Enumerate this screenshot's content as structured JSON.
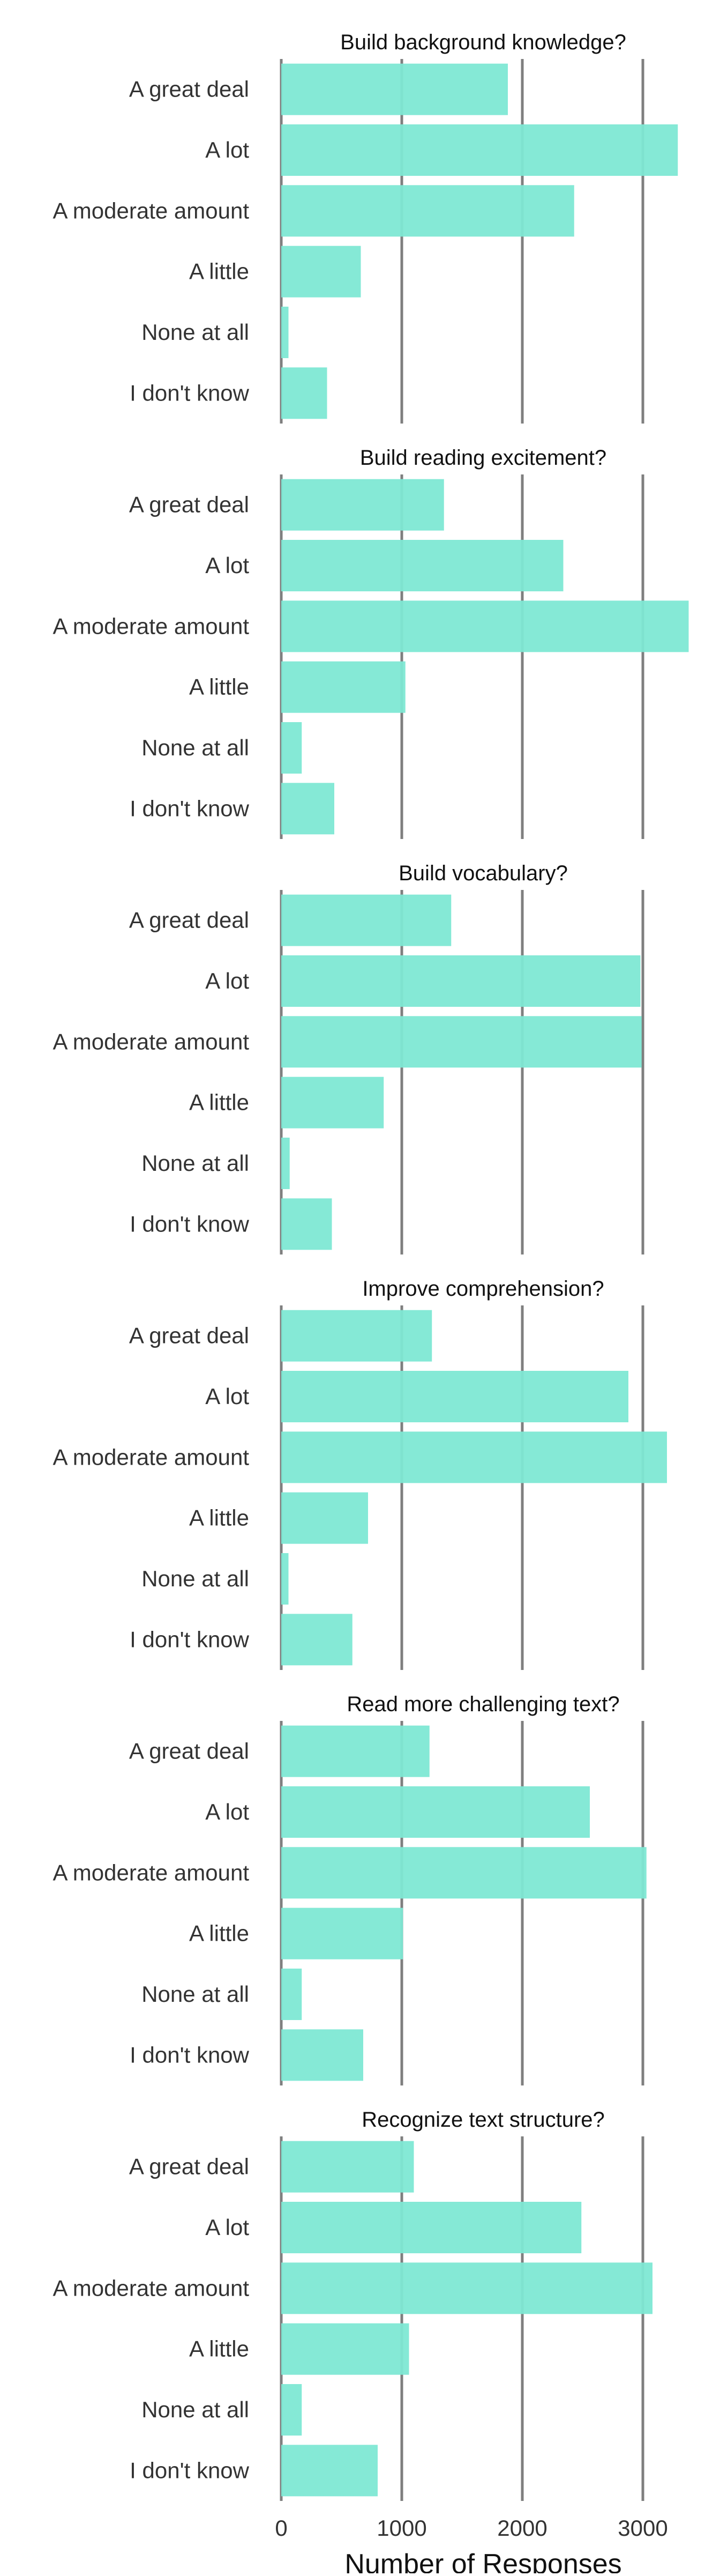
{
  "chart_data": {
    "type": "bar",
    "orientation": "horizontal",
    "xlabel": "Number of Responses",
    "xlim": [
      0,
      3400
    ],
    "xticks": [
      0,
      1000,
      2000,
      3000
    ],
    "grid": true,
    "bar_color": "#7ee8d4",
    "grid_color": "#7f7f7f",
    "categories": [
      "A great deal",
      "A lot",
      "A moderate amount",
      "A little",
      "None at all",
      "I don't know"
    ],
    "panels": [
      {
        "title": "Build background knowledge?",
        "values": [
          1880,
          3290,
          2430,
          660,
          60,
          380
        ]
      },
      {
        "title": "Build reading excitement?",
        "values": [
          1350,
          2340,
          3380,
          1030,
          170,
          440
        ]
      },
      {
        "title": "Build vocabulary?",
        "values": [
          1410,
          2980,
          2990,
          850,
          70,
          420
        ]
      },
      {
        "title": "Improve comprehension?",
        "values": [
          1250,
          2880,
          3200,
          720,
          60,
          590
        ]
      },
      {
        "title": "Read more challenging text?",
        "values": [
          1230,
          2560,
          3030,
          1010,
          170,
          680
        ]
      },
      {
        "title": "Recognize text structure?",
        "values": [
          1100,
          2490,
          3080,
          1060,
          170,
          800
        ]
      }
    ]
  }
}
